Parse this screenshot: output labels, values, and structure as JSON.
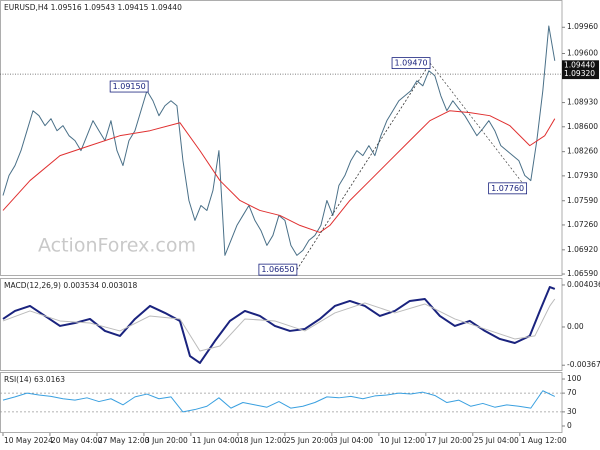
{
  "chart_data": [
    {
      "type": "line",
      "title": "EURUSD,H4  1.09516 1.09543 1.09415 1.09440",
      "watermark": "ActionForex.com",
      "xlim": [
        -0.5,
        93.2
      ],
      "ylim": [
        1.06563,
        1.10318
      ],
      "yticks": [
        {
          "value": 1.0996,
          "label": "1.09960"
        },
        {
          "value": 1.096,
          "label": "1.09600"
        },
        {
          "value": 1.0893,
          "label": "1.08930"
        },
        {
          "value": 1.086,
          "label": "1.08600"
        },
        {
          "value": 1.0826,
          "label": "1.08260"
        },
        {
          "value": 1.0793,
          "label": "1.07930"
        },
        {
          "value": 1.0759,
          "label": "1.07590"
        },
        {
          "value": 1.0726,
          "label": "1.07260"
        },
        {
          "value": 1.0692,
          "label": "1.06920"
        },
        {
          "value": 1.0659,
          "label": "1.06590"
        }
      ],
      "price_tags": [
        {
          "value": 1.0944,
          "label": "1.09440"
        },
        {
          "value": 1.0932,
          "label": "1.09320"
        }
      ],
      "annotations": [
        {
          "value": 1.0915,
          "label": "1.09150",
          "x": 24.2
        },
        {
          "value": 1.0665,
          "label": "1.06650",
          "x": 49
        },
        {
          "value": 1.0947,
          "label": "1.09470",
          "x": 71.2
        },
        {
          "value": 1.0776,
          "label": "1.07760",
          "x": 87.3
        }
      ],
      "series": [
        {
          "name": "EURUSD",
          "color": "#4a7088",
          "values": [
            1.07662,
            1.07935,
            1.08071,
            1.08275,
            1.08547,
            1.0882,
            1.08752,
            1.08616,
            1.08711,
            1.08547,
            1.08616,
            1.08479,
            1.08411,
            1.08275,
            1.08479,
            1.08684,
            1.08547,
            1.08411,
            1.08684,
            1.08275,
            1.08071,
            1.08411,
            1.08547,
            1.0882,
            1.09092,
            1.08956,
            1.08752,
            1.08888,
            1.08956,
            1.08888,
            1.08139,
            1.07594,
            1.07322,
            1.07526,
            1.07458,
            1.0773,
            1.08275,
            1.06845,
            1.07049,
            1.07254,
            1.0739,
            1.07526,
            1.07322,
            1.07185,
            1.06981,
            1.07117,
            1.0739,
            1.07322,
            1.06981,
            1.06845,
            1.06913,
            1.07049,
            1.07117,
            1.07254,
            1.07594,
            1.0739,
            1.07798,
            1.07935,
            1.08139,
            1.08275,
            1.08207,
            1.08343,
            1.08207,
            1.08479,
            1.08684,
            1.0882,
            1.08956,
            1.09024,
            1.09092,
            1.09228,
            1.0916,
            1.09365,
            1.09297,
            1.09024,
            1.0882,
            1.08956,
            1.08847,
            1.08752,
            1.08616,
            1.08479,
            1.08575,
            1.08684,
            1.08547,
            1.08343,
            1.08275,
            1.08207,
            1.08139,
            1.07935,
            1.07866,
            1.08411,
            1.09092,
            1.09977,
            1.09501
          ]
        },
        {
          "name": "MA",
          "color": "#e03030",
          "x": [
            0,
            4.5,
            9.5,
            14.5,
            19.5,
            24.5,
            29.5,
            32.83,
            36.17,
            39.5,
            42.83,
            46.17,
            49.5,
            52.83,
            54.5,
            57.83,
            61.17,
            64.5,
            67.83,
            71.17,
            74.5,
            77.83,
            81.17,
            84.5,
            87.83,
            90.33,
            92
          ],
          "values": [
            1.07458,
            1.07866,
            1.08207,
            1.08343,
            1.08479,
            1.08547,
            1.08656,
            1.08275,
            1.07866,
            1.07594,
            1.07458,
            1.0739,
            1.07254,
            1.07158,
            1.07254,
            1.07594,
            1.07866,
            1.08139,
            1.08411,
            1.08684,
            1.0882,
            1.08793,
            1.08752,
            1.08616,
            1.08343,
            1.08479,
            1.08711
          ]
        }
      ]
    },
    {
      "type": "line",
      "title": "MACD(12,26,9) 0.003534 0.003018",
      "xlim": [
        -0.5,
        93.2
      ],
      "ylim": [
        -0.00423,
        0.00461
      ],
      "yticks": [
        0.004036,
        {
          "value": 0,
          "label": "0.00"
        },
        -0.00367
      ],
      "series": [
        {
          "name": "MACD",
          "color": "#1a237e",
          "x": [
            0,
            2,
            4.5,
            7,
            9.5,
            12,
            14.5,
            17,
            19.5,
            22,
            24.5,
            27,
            29.5,
            31.17,
            32.83,
            35.33,
            37.83,
            40.33,
            42.83,
            45.33,
            47.83,
            50.33,
            52.83,
            55.33,
            57.83,
            60.33,
            62.83,
            65.33,
            67.83,
            70.33,
            72.83,
            75.33,
            77.83,
            80.33,
            82.83,
            85.33,
            87.83,
            89.5,
            91.17,
            92
          ],
          "values": [
            0.000769,
            0.00154,
            0.00202,
            0.00106,
            0.0001,
            0.00038,
            0.00077,
            -0.00038,
            -0.00086,
            0.00077,
            0.00202,
            0.00135,
            0.00058,
            -0.00279,
            -0.00346,
            -0.00135,
            0.00058,
            0.00154,
            0.00106,
            0.0001,
            -0.00038,
            -0.00019,
            0.00077,
            0.00202,
            0.0025,
            0.00202,
            0.00106,
            0.00154,
            0.0025,
            0.00269,
            0.00106,
            0.0001,
            0.00058,
            -0.00038,
            -0.00115,
            -0.00154,
            -0.00086,
            0.00154,
            0.00384,
            0.00365
          ]
        },
        {
          "name": "Signal",
          "color": "#bbbbbb",
          "x": [
            0,
            4.5,
            9.5,
            14.5,
            19.5,
            24.5,
            29.5,
            32.83,
            36.17,
            40.33,
            45.33,
            50.33,
            55.33,
            60.33,
            65.33,
            70.33,
            75.33,
            80.33,
            85.33,
            88.67,
            91.17,
            92
          ],
          "values": [
            0.00058,
            0.00154,
            0.00058,
            0.00038,
            -0.00038,
            0.00106,
            0.00077,
            -0.00231,
            -0.00183,
            0.00077,
            0.00058,
            -0.00038,
            0.00135,
            0.00231,
            0.00135,
            0.00221,
            0.00077,
            -0.00019,
            -0.00115,
            -0.00086,
            0.00202,
            0.00269
          ]
        }
      ]
    },
    {
      "type": "line",
      "title": "RSI(14) 63.0163",
      "xlim": [
        -0.5,
        93.2
      ],
      "ylim": [
        -14.9,
        112.8
      ],
      "yticks": [
        100,
        70,
        30,
        0
      ],
      "levels": [
        70,
        30
      ],
      "xticks": [
        {
          "value": 0,
          "label": "10 May 2024"
        },
        {
          "value": 7.83,
          "label": "20 May 04:00"
        },
        {
          "value": 15.67,
          "label": "27 May 12:00"
        },
        {
          "value": 23.5,
          "label": "3 Jun 20:00"
        },
        {
          "value": 31.33,
          "label": "11 Jun 04:00"
        },
        {
          "value": 39.17,
          "label": "18 Jun 12:00"
        },
        {
          "value": 47,
          "label": "25 Jun 20:00"
        },
        {
          "value": 54.83,
          "label": "3 Jul 04:00"
        },
        {
          "value": 62.67,
          "label": "10 Jul 12:00"
        },
        {
          "value": 70.5,
          "label": "17 Jul 20:00"
        },
        {
          "value": 78.33,
          "label": "25 Jul 04:00"
        },
        {
          "value": 86.17,
          "label": "1 Aug 12:00"
        }
      ],
      "series": [
        {
          "name": "RSI",
          "color": "#3aa0e0",
          "x": [
            0,
            2,
            4,
            6,
            8,
            10,
            12,
            14,
            16,
            18,
            20,
            22,
            24,
            26,
            28,
            30,
            32,
            34,
            36,
            38,
            40,
            42,
            44,
            46,
            48,
            50,
            52,
            54,
            56,
            58,
            60,
            62,
            64,
            66,
            68,
            70,
            72,
            74,
            76,
            78,
            80,
            82,
            84,
            86,
            88,
            90,
            92
          ],
          "values": [
            55,
            62,
            70,
            66,
            63,
            58,
            55,
            60,
            52,
            58,
            45,
            62,
            68,
            58,
            62,
            30,
            35,
            42,
            60,
            38,
            50,
            45,
            40,
            52,
            38,
            42,
            50,
            62,
            60,
            63,
            58,
            64,
            66,
            70,
            68,
            72,
            65,
            50,
            55,
            42,
            48,
            40,
            45,
            42,
            38,
            75,
            63
          ]
        }
      ]
    }
  ]
}
